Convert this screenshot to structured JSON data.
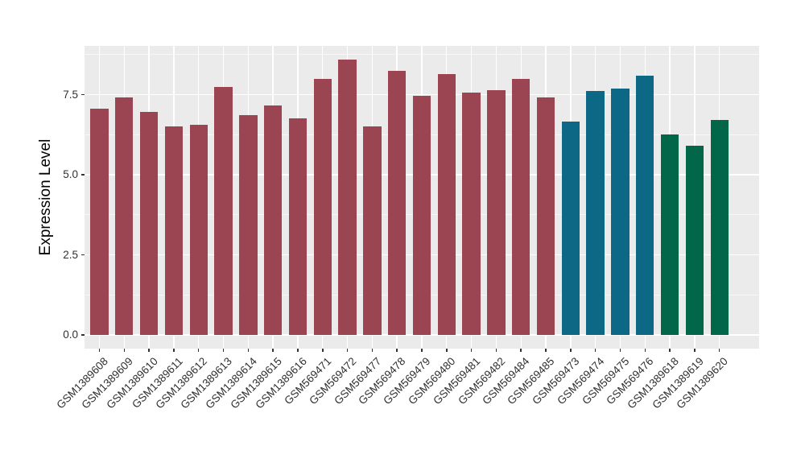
{
  "chart_data": {
    "type": "bar",
    "title": "",
    "xlabel": "",
    "ylabel": "Expression Level",
    "ylim": [
      -0.43,
      9.02
    ],
    "grid": "on",
    "legend_position": "none",
    "y_major_ticks": [
      {
        "value": 0,
        "label": "0.0"
      },
      {
        "value": 2.5,
        "label": "2.5"
      },
      {
        "value": 5,
        "label": "5.0"
      },
      {
        "value": 7.5,
        "label": "7.5"
      }
    ],
    "y_minor_gridlines": [
      1.25,
      3.75,
      6.25,
      8.75
    ],
    "categories": [
      "GSM1389608",
      "GSM1389609",
      "GSM1389610",
      "GSM1389611",
      "GSM1389612",
      "GSM1389613",
      "GSM1389614",
      "GSM1389615",
      "GSM1389616",
      "GSM569471",
      "GSM569472",
      "GSM569477",
      "GSM569478",
      "GSM569479",
      "GSM569480",
      "GSM569481",
      "GSM569482",
      "GSM569484",
      "GSM569485",
      "GSM569473",
      "GSM569474",
      "GSM569475",
      "GSM569476",
      "GSM1389618",
      "GSM1389619",
      "GSM1389620"
    ],
    "values": [
      7.05,
      7.4,
      6.95,
      6.5,
      6.55,
      7.75,
      6.85,
      7.15,
      6.75,
      8.0,
      8.6,
      6.5,
      8.25,
      7.45,
      8.15,
      7.55,
      7.65,
      8.0,
      7.4,
      6.65,
      7.6,
      7.7,
      8.1,
      6.25,
      5.9,
      6.7
    ],
    "bar_groups": [
      "maroon",
      "maroon",
      "maroon",
      "maroon",
      "maroon",
      "maroon",
      "maroon",
      "maroon",
      "maroon",
      "maroon",
      "maroon",
      "maroon",
      "maroon",
      "maroon",
      "maroon",
      "maroon",
      "maroon",
      "maroon",
      "maroon",
      "teal",
      "teal",
      "teal",
      "teal",
      "green",
      "green",
      "green"
    ],
    "group_colors": {
      "maroon": "#9B4452",
      "teal": "#0D6886",
      "green": "#016748"
    }
  },
  "style": {
    "figure_bg": "#FFFFFF",
    "panel_bg": "#EBEBEB",
    "grid_major": "#FFFFFF",
    "grid_minor": "rgba(255,255,255,0.6)",
    "tick_mark_color": "#333333",
    "axis_text_color": "#303030",
    "axis_title_color": "#000000"
  }
}
